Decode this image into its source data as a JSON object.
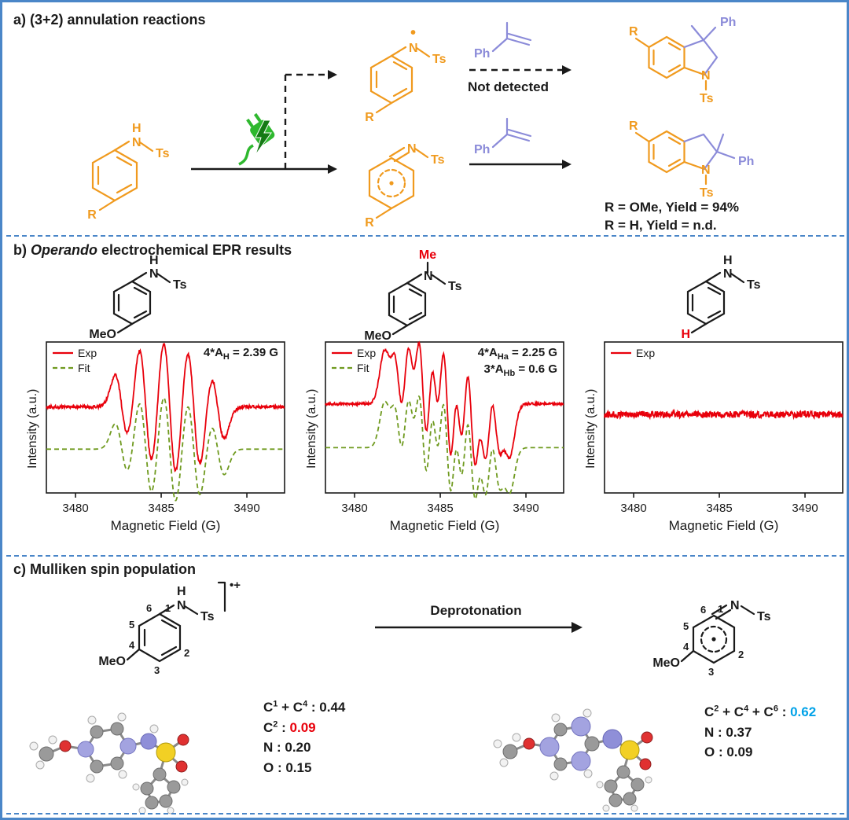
{
  "colors": {
    "orange": "#f09a1e",
    "purple": "#8b8bd9",
    "green": "#2eb82e",
    "red": "#e8000b",
    "fitgreen": "#6f9a1f",
    "frameblue": "#4a86c8",
    "cyan": "#00a2e8",
    "ink": "#1a1a1a"
  },
  "section_a": {
    "title": "a) (3+2) annulation reactions",
    "not_detected": "Not detected",
    "yield_line_1": "R = OMe, Yield = 94%",
    "yield_line_2": "R = H, Yield = n.d."
  },
  "section_b": {
    "title_prefix": "b) ",
    "title_italic": "Operando",
    "title_rest": " electrochemical EPR results"
  },
  "section_c": {
    "title": "c) Mulliken spin population",
    "deprotonation": "Deprotonation",
    "spin_left": {
      "c1": "C",
      "c1_sup": "1",
      "plus1": " + C",
      "c4_sup": "4",
      "v1": " : 0.44",
      "c2": "C",
      "c2_sup": "2",
      "colon2": " : ",
      "v2": "0.09",
      "n_line": "N : 0.20",
      "o_line": "O : 0.15"
    },
    "spin_right": {
      "c2": "C",
      "c2_sup": "2",
      "plus1": " + C",
      "c4_sup": "4",
      "plus2": " + C",
      "c6_sup": "6",
      "colon": " : ",
      "v1": "0.62",
      "n_line": "N : 0.37",
      "o_line": "O : 0.09"
    }
  },
  "atoms": {
    "R": "R",
    "N": "N",
    "H": "H",
    "Ts": "Ts",
    "Ph": "Ph",
    "MeO": "MeO",
    "Me": "Me",
    "radical": "•",
    "radical_cation": "•+"
  },
  "ring_numbers": [
    "1",
    "2",
    "3",
    "4",
    "5",
    "6"
  ],
  "chart_data": [
    {
      "type": "line",
      "title": "",
      "xlabel": "Magnetic Field (G)",
      "ylabel": "Intensity (a.u.)",
      "xlim": [
        3478.3,
        3492.2
      ],
      "xtick_values": [
        3480,
        3485,
        3490
      ],
      "xticks": [
        "3480",
        "3485",
        "3490"
      ],
      "grid": false,
      "legend_position": "top-left",
      "legend": [
        {
          "label": "Exp",
          "color": "#e8000b",
          "dash": false
        },
        {
          "label": "Fit",
          "color": "#6f9a1f",
          "dash": true
        }
      ],
      "annotation_lines": [
        {
          "pre": "4*A",
          "sub": "H",
          "post": " = 2.39 G"
        }
      ],
      "series": [
        {
          "name": "Exp",
          "color": "#e8000b",
          "dash": false,
          "offset": 0.14,
          "scale": 0.42,
          "noise": 0.01,
          "linewidth": 0.38,
          "centers": [
            3482.7,
            3484.1,
            3485.5,
            3486.9,
            3488.3
          ],
          "amps": [
            0.45,
            0.85,
            1.0,
            0.85,
            0.45
          ]
        },
        {
          "name": "Fit",
          "color": "#6f9a1f",
          "dash": true,
          "offset": -0.42,
          "scale": 0.34,
          "noise": 0,
          "linewidth": 0.38,
          "centers": [
            3482.7,
            3484.1,
            3485.5,
            3486.9,
            3488.3
          ],
          "amps": [
            0.45,
            0.85,
            1.0,
            0.85,
            0.45
          ]
        }
      ]
    },
    {
      "type": "line",
      "title": "",
      "xlabel": "Magnetic Field (G)",
      "ylabel": "Intensity (a.u.)",
      "xlim": [
        3478.3,
        3492.2
      ],
      "xtick_values": [
        3480,
        3485,
        3490
      ],
      "xticks": [
        "3480",
        "3485",
        "3490"
      ],
      "grid": false,
      "legend_position": "top-left",
      "legend": [
        {
          "label": "Exp",
          "color": "#e8000b",
          "dash": false
        },
        {
          "label": "Fit",
          "color": "#6f9a1f",
          "dash": true
        }
      ],
      "annotation_lines": [
        {
          "pre": "4*A",
          "sub": "Ha",
          "post": " = 2.25 G"
        },
        {
          "pre": "3*A",
          "sub": "Hb",
          "post": " = 0.6 G"
        }
      ],
      "series": [
        {
          "name": "Exp",
          "color": "#e8000b",
          "dash": false,
          "offset": 0.18,
          "scale": 0.4,
          "noise": 0.008,
          "linewidth": 0.32,
          "centers": [
            3482.0,
            3482.6,
            3483.2,
            3483.4,
            3484.0,
            3484.6,
            3484.8,
            3485.4,
            3486.0,
            3486.2,
            3486.8,
            3487.4,
            3487.6,
            3488.2,
            3488.8
          ],
          "amps": [
            0.225,
            0.45,
            0.225,
            0.425,
            0.85,
            0.425,
            0.5,
            1.0,
            0.5,
            0.425,
            0.85,
            0.425,
            0.225,
            0.45,
            0.225
          ]
        },
        {
          "name": "Fit",
          "color": "#6f9a1f",
          "dash": true,
          "offset": -0.4,
          "scale": 0.34,
          "noise": 0,
          "linewidth": 0.32,
          "centers": [
            3482.0,
            3482.6,
            3483.2,
            3483.4,
            3484.0,
            3484.6,
            3484.8,
            3485.4,
            3486.0,
            3486.2,
            3486.8,
            3487.4,
            3487.6,
            3488.2,
            3488.8
          ],
          "amps": [
            0.225,
            0.45,
            0.225,
            0.425,
            0.85,
            0.425,
            0.5,
            1.0,
            0.5,
            0.425,
            0.85,
            0.425,
            0.225,
            0.45,
            0.225
          ]
        }
      ]
    },
    {
      "type": "line",
      "title": "",
      "xlabel": "Magnetic Field (G)",
      "ylabel": "Intensity (a.u.)",
      "xlim": [
        3478.3,
        3492.2
      ],
      "xtick_values": [
        3480,
        3485,
        3490
      ],
      "xticks": [
        "3480",
        "3485",
        "3490"
      ],
      "grid": false,
      "legend_position": "top-left",
      "legend": [
        {
          "label": "Exp",
          "color": "#e8000b",
          "dash": false
        }
      ],
      "annotation_lines": [],
      "series": [
        {
          "name": "Exp",
          "color": "#e8000b",
          "dash": false,
          "offset": 0.04,
          "scale": 0,
          "noise": 0.022,
          "linewidth": 1,
          "centers": [],
          "amps": []
        }
      ]
    }
  ]
}
